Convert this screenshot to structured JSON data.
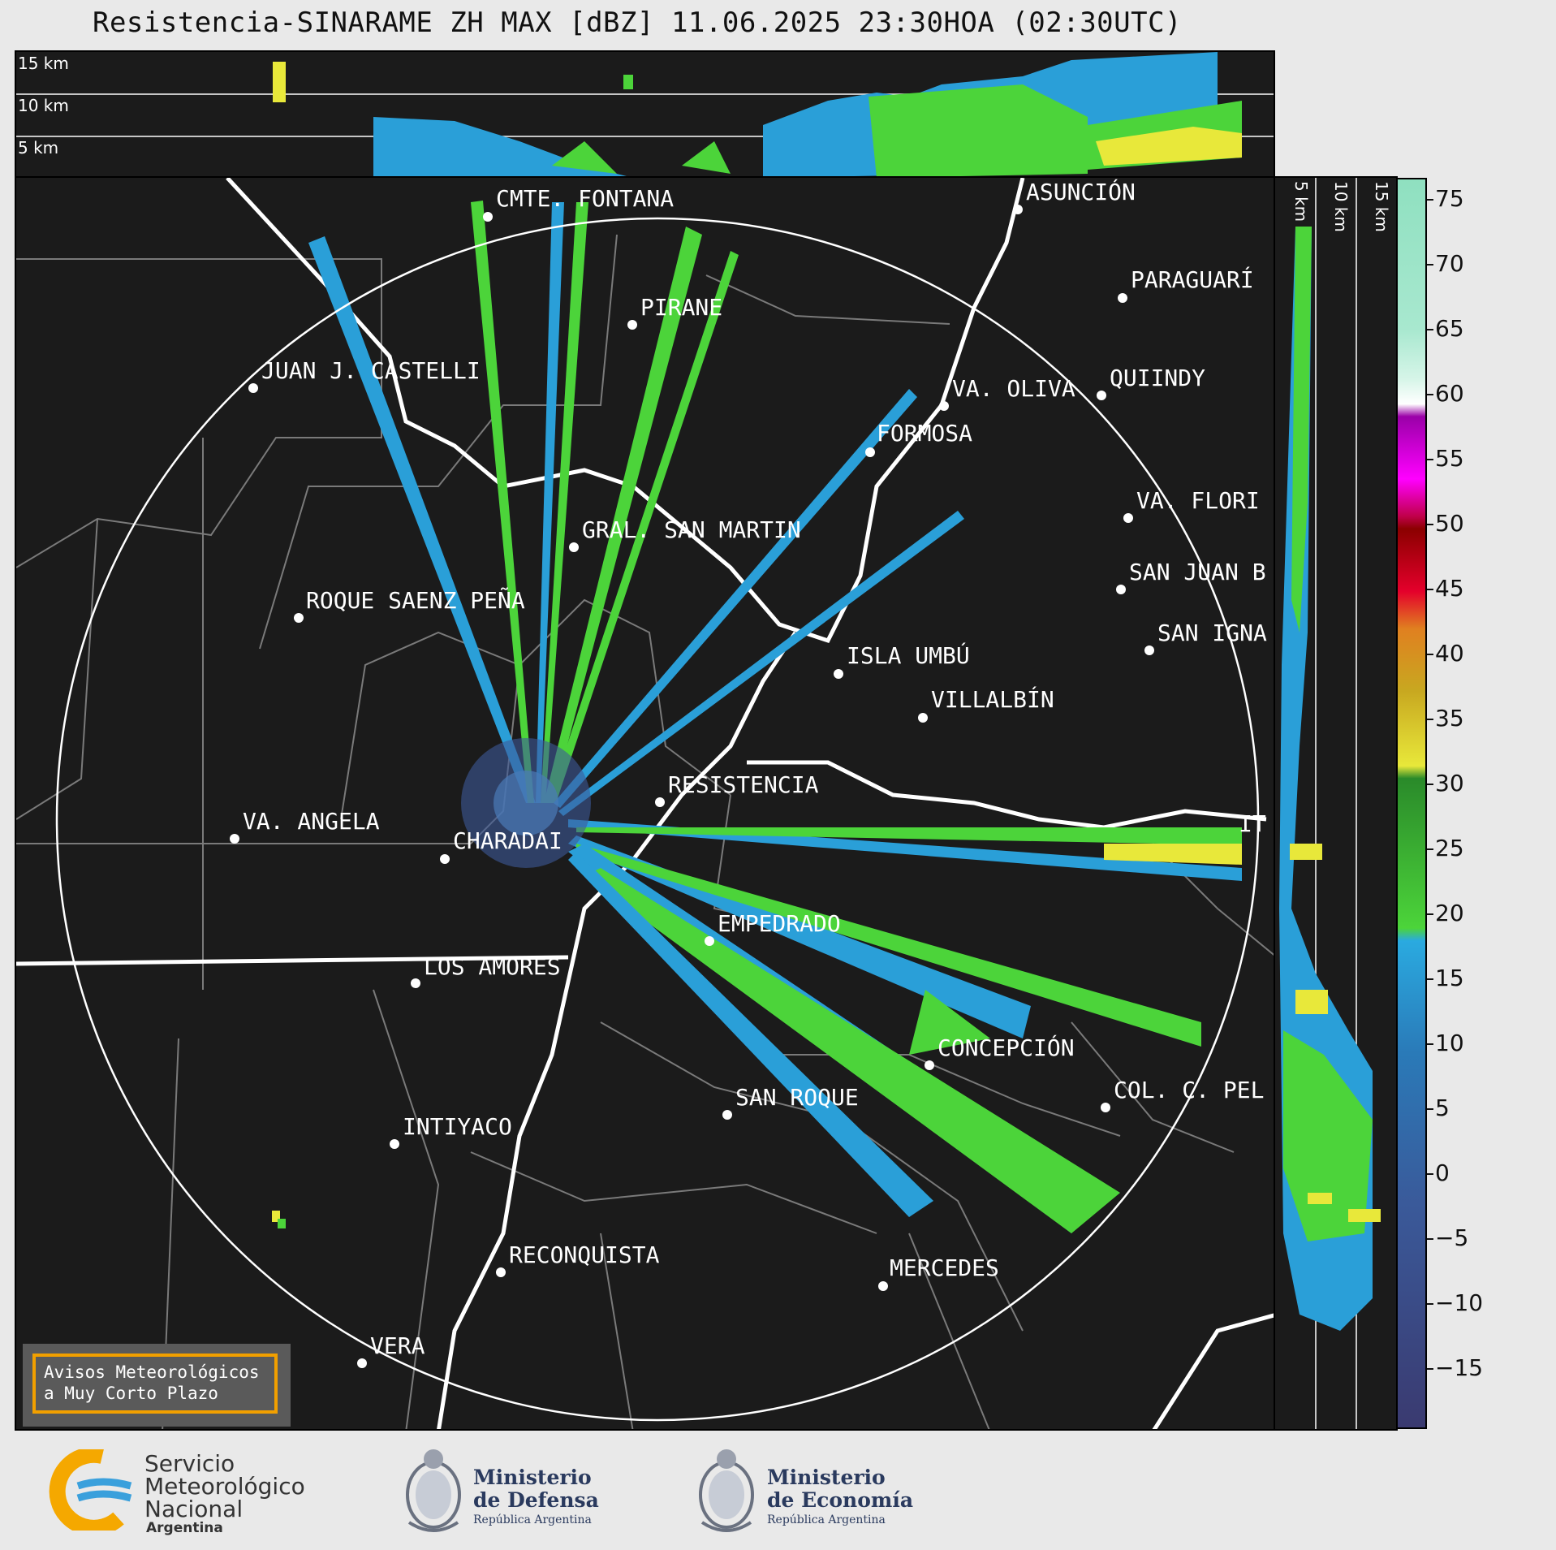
{
  "title": "Resistencia-SINARAME ZH MAX [dBZ] 11.06.2025 23:30HOA (02:30UTC)",
  "top_profile": {
    "labels": [
      "15 km",
      "10 km",
      "5 km"
    ]
  },
  "side_profile": {
    "labels": [
      "5 km",
      "10 km",
      "15 km"
    ]
  },
  "cities": [
    {
      "name": "CMTE. FONTANA"
    },
    {
      "name": "ASUNCIÓN"
    },
    {
      "name": "PARAGUARÍ"
    },
    {
      "name": "PIRANE"
    },
    {
      "name": "JUAN J. CASTELLI"
    },
    {
      "name": "VA. OLIVA"
    },
    {
      "name": "QUIINDY"
    },
    {
      "name": "FORMOSA"
    },
    {
      "name": "VA. FLORI"
    },
    {
      "name": "GRAL. SAN MARTIN"
    },
    {
      "name": "SAN JUAN B"
    },
    {
      "name": "ROQUE SAENZ PEÑA"
    },
    {
      "name": "SAN IGNA"
    },
    {
      "name": "ISLA UMBÚ"
    },
    {
      "name": "VILLALBÍN"
    },
    {
      "name": "RESISTENCIA"
    },
    {
      "name": "VA. ANGELA"
    },
    {
      "name": "CHARADAI"
    },
    {
      "name": "IT"
    },
    {
      "name": "EMPEDRADO"
    },
    {
      "name": "LOS AMORES"
    },
    {
      "name": "CONCEPCIÓN"
    },
    {
      "name": "SAN ROQUE"
    },
    {
      "name": "COL. C. PEL"
    },
    {
      "name": "INTIYACO"
    },
    {
      "name": "RECONQUISTA"
    },
    {
      "name": "MERCEDES"
    },
    {
      "name": "VERA"
    }
  ],
  "colorbar": {
    "ticks": [
      "75",
      "70",
      "65",
      "60",
      "55",
      "50",
      "45",
      "40",
      "35",
      "30",
      "25",
      "20",
      "15",
      "10",
      "5",
      "0",
      "−5",
      "−10",
      "−15"
    ],
    "colors": {
      "green": "#4cd43a",
      "blue": "#2a9fd8",
      "yellow": "#e8e83a",
      "background": "#1b1b1b"
    }
  },
  "alert": {
    "line1": "Avisos Meteorológicos",
    "line2": "a Muy Corto Plazo"
  },
  "footer": {
    "smn": {
      "line1": "Servicio",
      "line2": "Meteorológico",
      "line3": "Nacional",
      "line4": "Argentina"
    },
    "defensa": {
      "line1": "Ministerio",
      "line2": "de Defensa",
      "line3": "República Argentina"
    },
    "economia": {
      "line1": "Ministerio",
      "line2": "de Economía",
      "line3": "República Argentina"
    }
  }
}
